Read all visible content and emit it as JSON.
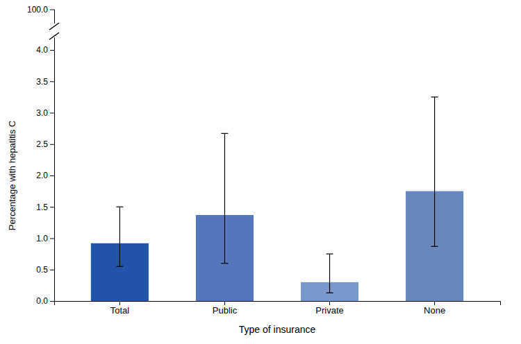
{
  "chart_data": {
    "type": "bar",
    "categories": [
      "Total",
      "Public",
      "Private",
      "None"
    ],
    "values": [
      0.92,
      1.37,
      0.3,
      1.75
    ],
    "yerr_low": [
      0.37,
      0.77,
      0.17,
      0.88
    ],
    "yerr_high": [
      0.58,
      1.3,
      0.45,
      1.5
    ],
    "colors": [
      "#2255aa",
      "#5577bb",
      "#7799cc",
      "#6688bb"
    ],
    "xlabel": "Type of insurance",
    "ylabel": "Percentage with hepatitis C",
    "ylim": [
      0.0,
      4.0
    ],
    "yticks": [
      {
        "value": 0.0,
        "label": "0.0"
      },
      0.5,
      {
        "value": 1.0,
        "label": "1.0"
      },
      1.5,
      {
        "value": 2.0,
        "label": "2.0"
      },
      2.5,
      {
        "value": 3.0,
        "label": "3.0"
      },
      3.5,
      {
        "value": 4.0,
        "label": "4.0"
      }
    ],
    "annotations": [
      {
        "text": "100.0"
      }
    ],
    "grid": false
  }
}
